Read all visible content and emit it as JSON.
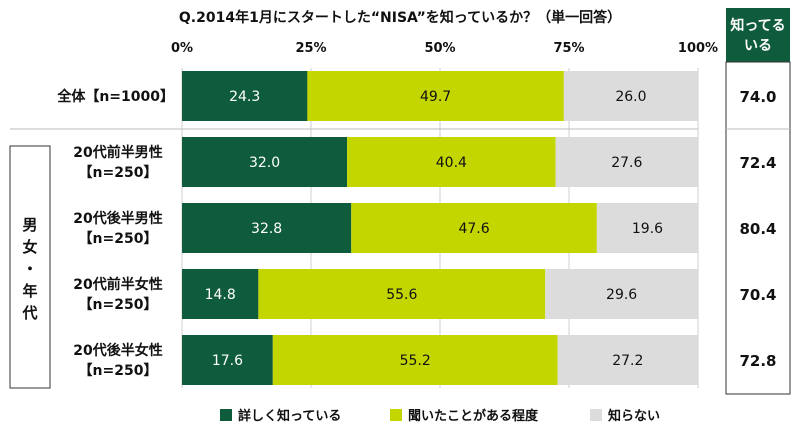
{
  "chart_data": {
    "type": "bar",
    "orientation": "horizontal",
    "stacked": true,
    "title": "Q.2014年1月にスタートした“NISA”を知っているか？（単一回答）",
    "x_tick_labels": [
      "0%",
      "25%",
      "50%",
      "75%",
      "100%"
    ],
    "xlim": [
      0,
      100
    ],
    "group_label": "男女・年代",
    "right_column_header": "知ってる\nいる",
    "categories": [
      {
        "line1": "全体【n=1000】",
        "line2": ""
      },
      {
        "line1": "20代前半男性",
        "line2": "【n=250】"
      },
      {
        "line1": "20代後半男性",
        "line2": "【n=250】"
      },
      {
        "line1": "20代前半女性",
        "line2": "【n=250】"
      },
      {
        "line1": "20代後半女性",
        "line2": "【n=250】"
      }
    ],
    "series": [
      {
        "name": "詳しく知っている",
        "values": [
          24.3,
          32.0,
          32.8,
          14.8,
          17.6
        ],
        "labels": [
          "24.3",
          "32.0",
          "32.8",
          "14.8",
          "17.6"
        ],
        "color": "#0f5c3c",
        "label_color": "#ffffff"
      },
      {
        "name": "聞いたことがある程度",
        "values": [
          49.7,
          40.4,
          47.6,
          55.6,
          55.2
        ],
        "labels": [
          "49.7",
          "40.4",
          "47.6",
          "55.6",
          "55.2"
        ],
        "color": "#c4d600",
        "label_color": "#111111"
      },
      {
        "name": "知らない",
        "values": [
          26.0,
          27.6,
          19.6,
          29.6,
          27.2
        ],
        "labels": [
          "26.0",
          "27.6",
          "19.6",
          "29.6",
          "27.2"
        ],
        "color": "#dcdcdc",
        "label_color": "#111111"
      }
    ],
    "right_values": [
      "74.0",
      "72.4",
      "80.4",
      "70.4",
      "72.8"
    ],
    "legend_position": "bottom",
    "header_bg": "#0f5c3c",
    "grid": true
  }
}
